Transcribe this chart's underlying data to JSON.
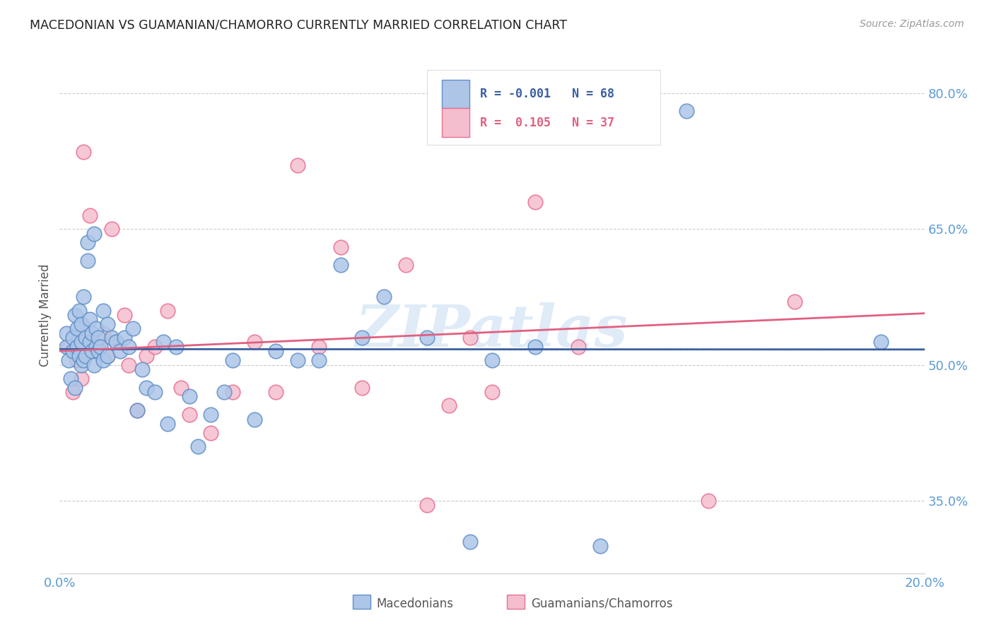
{
  "title": "MACEDONIAN VS GUAMANIAN/CHAMORRO CURRENTLY MARRIED CORRELATION CHART",
  "source": "Source: ZipAtlas.com",
  "ylabel": "Currently Married",
  "xlim": [
    0.0,
    20.0
  ],
  "ylim": [
    27.0,
    84.0
  ],
  "yticks": [
    35.0,
    50.0,
    65.0,
    80.0
  ],
  "ytick_labels": [
    "35.0%",
    "50.0%",
    "65.0%",
    "80.0%"
  ],
  "xtick_positions": [
    0.0,
    20.0
  ],
  "xtick_labels": [
    "0.0%",
    "20.0%"
  ],
  "legend_blue_r": "-0.001",
  "legend_blue_n": "68",
  "legend_pink_r": "0.105",
  "legend_pink_n": "37",
  "blue_color": "#adc6e8",
  "pink_color": "#f5bece",
  "blue_edge_color": "#6090c8",
  "pink_edge_color": "#e87090",
  "blue_line_color": "#3a5fa0",
  "pink_line_color": "#e06080",
  "background_color": "#ffffff",
  "grid_color": "#cccccc",
  "title_color": "#222222",
  "axis_label_color": "#5b9bd5",
  "watermark": "ZIPatlas",
  "blue_x": [
    0.15,
    0.15,
    0.2,
    0.25,
    0.3,
    0.3,
    0.35,
    0.35,
    0.4,
    0.4,
    0.45,
    0.45,
    0.5,
    0.5,
    0.5,
    0.55,
    0.55,
    0.6,
    0.6,
    0.65,
    0.65,
    0.7,
    0.7,
    0.75,
    0.75,
    0.8,
    0.8,
    0.85,
    0.85,
    0.9,
    0.9,
    0.95,
    1.0,
    1.0,
    1.1,
    1.1,
    1.2,
    1.3,
    1.4,
    1.5,
    1.6,
    1.7,
    1.8,
    1.9,
    2.0,
    2.2,
    2.4,
    2.5,
    2.7,
    3.0,
    3.2,
    3.5,
    3.8,
    4.0,
    4.5,
    5.0,
    5.5,
    6.0,
    6.5,
    7.0,
    7.5,
    8.5,
    9.5,
    10.0,
    11.0,
    12.5,
    14.5,
    19.0
  ],
  "blue_y": [
    52.0,
    53.5,
    50.5,
    48.5,
    51.5,
    53.0,
    47.5,
    55.5,
    52.0,
    54.0,
    51.0,
    56.0,
    50.0,
    52.5,
    54.5,
    50.5,
    57.5,
    51.0,
    53.0,
    61.5,
    63.5,
    52.5,
    55.0,
    51.5,
    53.5,
    50.0,
    64.5,
    52.0,
    54.0,
    51.5,
    53.0,
    52.0,
    50.5,
    56.0,
    51.0,
    54.5,
    53.0,
    52.5,
    51.5,
    53.0,
    52.0,
    54.0,
    45.0,
    49.5,
    47.5,
    47.0,
    52.5,
    43.5,
    52.0,
    46.5,
    41.0,
    44.5,
    47.0,
    50.5,
    44.0,
    51.5,
    50.5,
    50.5,
    61.0,
    53.0,
    57.5,
    53.0,
    30.5,
    50.5,
    52.0,
    30.0,
    78.0,
    52.5
  ],
  "pink_x": [
    0.2,
    0.3,
    0.4,
    0.5,
    0.55,
    0.7,
    0.8,
    0.9,
    1.0,
    1.1,
    1.2,
    1.3,
    1.5,
    1.6,
    1.8,
    2.0,
    2.2,
    2.5,
    2.8,
    3.0,
    3.5,
    4.0,
    4.5,
    5.0,
    5.5,
    6.0,
    6.5,
    7.0,
    8.0,
    8.5,
    9.0,
    9.5,
    10.0,
    11.0,
    12.0,
    15.0,
    17.0
  ],
  "pink_y": [
    52.0,
    47.0,
    50.5,
    48.5,
    73.5,
    66.5,
    51.5,
    52.0,
    53.5,
    51.0,
    65.0,
    52.5,
    55.5,
    50.0,
    45.0,
    51.0,
    52.0,
    56.0,
    47.5,
    44.5,
    42.5,
    47.0,
    52.5,
    47.0,
    72.0,
    52.0,
    63.0,
    47.5,
    61.0,
    34.5,
    45.5,
    53.0,
    47.0,
    68.0,
    52.0,
    35.0,
    57.0
  ]
}
